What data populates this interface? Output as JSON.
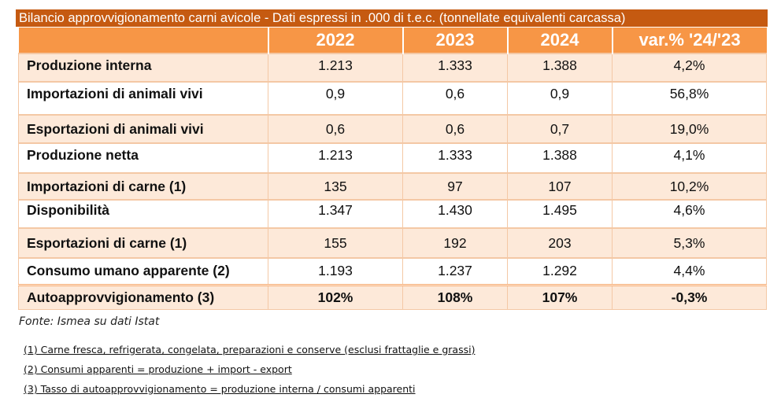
{
  "title": "Bilancio approvvigionamento carni avicole - Dati espressi in .000 di t.e.c. (tonnellate equivalenti carcassa)",
  "columns": [
    "",
    "2022",
    "2023",
    "2024",
    "var.% '24/'23"
  ],
  "rows": [
    {
      "label": "Produzione interna",
      "values": [
        "1.213",
        "1.333",
        "1.388",
        "4,2%"
      ]
    },
    {
      "label": "Importazioni di animali vivi",
      "values": [
        "0,9",
        "0,6",
        "0,9",
        "56,8%"
      ]
    },
    {
      "label": "Esportazioni di animali vivi",
      "values": [
        "0,6",
        "0,6",
        "0,7",
        "19,0%"
      ]
    },
    {
      "label": "Produzione netta",
      "values": [
        "1.213",
        "1.333",
        "1.388",
        "4,1%"
      ]
    },
    {
      "label": "Importazioni di carne (1)",
      "values": [
        "135",
        "97",
        "107",
        "10,2%"
      ]
    },
    {
      "label": "Disponibilità",
      "values": [
        "1.347",
        "1.430",
        "1.495",
        "4,6%"
      ]
    },
    {
      "label": "Esportazioni di carne (1)",
      "values": [
        "155",
        "192",
        "203",
        "5,3%"
      ]
    },
    {
      "label": "Consumo umano apparente (2)",
      "values": [
        "1.193",
        "1.237",
        "1.292",
        "4,4%"
      ]
    },
    {
      "label": "Autoapprovvigionamento (3)",
      "values": [
        "102%",
        "108%",
        "107%",
        "-0,3%"
      ]
    }
  ],
  "source": "Fonte: Ismea su dati Istat",
  "notes": [
    "(1) Carne fresca, refrigerata, congelata, preparazioni e conserve (esclusi frattaglie e grassi)",
    "(2) Consumi apparenti = produzione + import - export",
    "(3) Tasso di autoapprovvigionamento = produzione interna / consumi apparenti"
  ],
  "colors": {
    "title_bg": "#c55a11",
    "header_bg": "#f79646",
    "row_shade": "#fde9d9",
    "border": "#f4c8a5"
  }
}
